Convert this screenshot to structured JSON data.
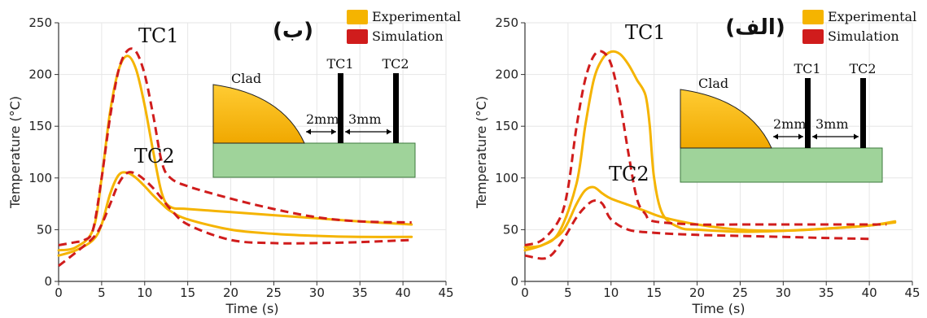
{
  "legend": {
    "experimental": "Experimental",
    "simulation": "Simulation",
    "experimental_color": "#f5b400",
    "simulation_color": "#d01c1c"
  },
  "inset": {
    "clad": "Clad",
    "tc1": "TC1",
    "tc2": "TC2",
    "gap1": "2mm",
    "gap2": "3mm"
  },
  "chart_data": [
    {
      "type": "line",
      "panel_label": "(ب)",
      "xlabel": "Time (s)",
      "ylabel": "Temperature (°C)",
      "xlim": [
        0,
        45
      ],
      "ylim": [
        0,
        250
      ],
      "xticks": [
        0,
        5,
        10,
        15,
        20,
        25,
        30,
        35,
        40,
        45
      ],
      "yticks": [
        0,
        50,
        100,
        150,
        200,
        250
      ],
      "grid": true,
      "legend_position": "top-right",
      "annotations": [
        "TC1",
        "TC2"
      ],
      "series": [
        {
          "name": "Experimental",
          "label": "TC1",
          "x": [
            0,
            2,
            4,
            5,
            6,
            7,
            8,
            9,
            10,
            11,
            12,
            13,
            15,
            20,
            25,
            30,
            35,
            41
          ],
          "y": [
            30,
            33,
            50,
            100,
            165,
            205,
            218,
            205,
            170,
            125,
            85,
            72,
            70,
            67,
            64,
            61,
            58,
            55
          ]
        },
        {
          "name": "Experimental",
          "label": "TC2",
          "x": [
            0,
            2,
            4,
            5,
            6,
            7,
            8,
            9,
            10,
            11,
            12,
            13,
            15,
            20,
            25,
            30,
            35,
            41
          ],
          "y": [
            25,
            30,
            40,
            55,
            85,
            103,
            105,
            100,
            92,
            83,
            75,
            68,
            60,
            50,
            46,
            44,
            43,
            43
          ]
        },
        {
          "name": "Simulation",
          "label": "TC1",
          "x": [
            0,
            2,
            3,
            4,
            5,
            6,
            7,
            8,
            9,
            10,
            11,
            12,
            13,
            15,
            20,
            25,
            30,
            35,
            41
          ],
          "y": [
            35,
            38,
            40,
            50,
            100,
            160,
            205,
            223,
            222,
            200,
            160,
            115,
            100,
            92,
            80,
            70,
            62,
            58,
            57
          ]
        },
        {
          "name": "Simulation",
          "label": "TC2",
          "x": [
            0,
            2,
            4,
            5,
            6,
            7,
            8,
            9,
            10,
            11,
            12,
            13,
            15,
            20,
            25,
            30,
            35,
            41
          ],
          "y": [
            15,
            28,
            42,
            55,
            75,
            95,
            105,
            104,
            98,
            90,
            80,
            70,
            55,
            40,
            37,
            37,
            38,
            40
          ]
        }
      ]
    },
    {
      "type": "line",
      "panel_label": "(الف)",
      "xlabel": "Time (s)",
      "ylabel": "Temperature (°C)",
      "xlim": [
        0,
        45
      ],
      "ylim": [
        0,
        250
      ],
      "xticks": [
        0,
        5,
        10,
        15,
        20,
        25,
        30,
        35,
        40,
        45
      ],
      "yticks": [
        0,
        50,
        100,
        150,
        200,
        250
      ],
      "grid": true,
      "legend_position": "top-right",
      "annotations": [
        "TC1",
        "TC2"
      ],
      "series": [
        {
          "name": "Experimental",
          "label": "TC1",
          "x": [
            0,
            2,
            4,
            6,
            7,
            8,
            9,
            10,
            11,
            12,
            13,
            14,
            14.5,
            15,
            16,
            18,
            20,
            25,
            30,
            35,
            40,
            43
          ],
          "y": [
            33,
            35,
            48,
            95,
            150,
            195,
            215,
            222,
            220,
            210,
            195,
            180,
            150,
            100,
            65,
            52,
            50,
            48,
            49,
            51,
            54,
            58
          ]
        },
        {
          "name": "Experimental",
          "label": "TC2",
          "x": [
            0,
            2,
            4,
            5,
            6,
            7,
            8,
            9,
            10,
            12,
            14,
            16,
            20,
            25,
            30,
            35,
            40,
            43
          ],
          "y": [
            30,
            35,
            45,
            57,
            75,
            88,
            91,
            85,
            80,
            74,
            68,
            62,
            55,
            50,
            49,
            51,
            54,
            57
          ]
        },
        {
          "name": "Simulation",
          "label": "TC1",
          "x": [
            0,
            2,
            4,
            5,
            6,
            7,
            8,
            9,
            10,
            11,
            12,
            13,
            14,
            15,
            20,
            25,
            30,
            35,
            40,
            42
          ],
          "y": [
            35,
            40,
            60,
            90,
            150,
            195,
            218,
            222,
            210,
            175,
            125,
            80,
            65,
            58,
            55,
            55,
            55,
            55,
            55,
            55
          ]
        },
        {
          "name": "Simulation",
          "label": "TC2",
          "x": [
            0,
            2,
            3,
            4,
            5,
            6,
            7,
            8,
            9,
            10,
            12,
            15,
            20,
            25,
            30,
            35,
            40
          ],
          "y": [
            25,
            22,
            25,
            35,
            48,
            62,
            72,
            78,
            75,
            60,
            50,
            47,
            45,
            44,
            43,
            42,
            41
          ]
        }
      ]
    }
  ]
}
